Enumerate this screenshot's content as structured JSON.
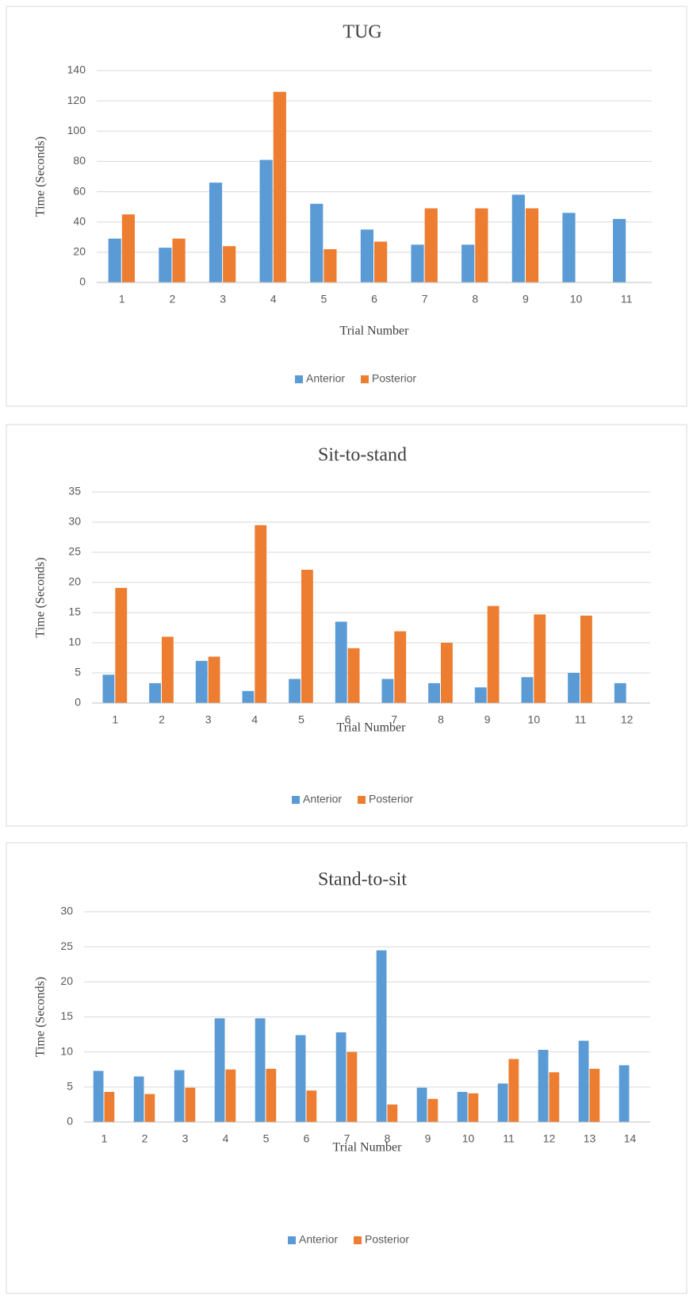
{
  "chart_data": [
    {
      "type": "bar",
      "title": "TUG",
      "x_label": "Trial Number",
      "y_label": "Time (Seconds)",
      "categories": [
        "1",
        "2",
        "3",
        "4",
        "5",
        "6",
        "7",
        "8",
        "9",
        "10",
        "11"
      ],
      "series": [
        {
          "name": "Anterior",
          "color": "#5b9bd5",
          "values": [
            29,
            23,
            66,
            81,
            52,
            35,
            25,
            25,
            58,
            46,
            42
          ]
        },
        {
          "name": "Posterior",
          "color": "#ed7d31",
          "values": [
            45,
            29,
            24,
            126,
            22,
            27,
            49,
            49,
            49,
            null,
            null
          ]
        }
      ],
      "ylim": [
        0,
        140
      ],
      "yticks": [
        0,
        20,
        40,
        60,
        80,
        100,
        120,
        140
      ],
      "grid": true,
      "legend": "bottom"
    },
    {
      "type": "bar",
      "title": "Sit-to-stand",
      "x_label": "Trial Number",
      "y_label": "Time (Seconds)",
      "categories": [
        "1",
        "2",
        "3",
        "4",
        "5",
        "6",
        "7",
        "8",
        "9",
        "10",
        "11",
        "12"
      ],
      "series": [
        {
          "name": "Anterior",
          "color": "#5b9bd5",
          "values": [
            4.7,
            3.3,
            7,
            2,
            4,
            13.5,
            4,
            3.3,
            2.6,
            4.3,
            5,
            3.3
          ]
        },
        {
          "name": "Posterior",
          "color": "#ed7d31",
          "values": [
            19.1,
            11,
            7.7,
            29.5,
            22.1,
            9.1,
            11.9,
            10,
            16.1,
            14.7,
            14.5,
            null
          ]
        }
      ],
      "ylim": [
        0,
        35
      ],
      "yticks": [
        0,
        5,
        10,
        15,
        20,
        25,
        30,
        35
      ],
      "grid": true,
      "legend": "bottom"
    },
    {
      "type": "bar",
      "title": "Stand-to-sit",
      "x_label": "Trial Number",
      "y_label": "Time (Seconds)",
      "categories": [
        "1",
        "2",
        "3",
        "4",
        "5",
        "6",
        "7",
        "8",
        "9",
        "10",
        "11",
        "12",
        "13",
        "14"
      ],
      "series": [
        {
          "name": "Anterior",
          "color": "#5b9bd5",
          "values": [
            7.3,
            6.5,
            7.4,
            14.8,
            14.8,
            12.4,
            12.8,
            24.5,
            4.9,
            4.3,
            5.5,
            10.3,
            11.6,
            8.1
          ]
        },
        {
          "name": "Posterior",
          "color": "#ed7d31",
          "values": [
            4.3,
            4,
            4.9,
            7.5,
            7.6,
            4.5,
            10,
            2.5,
            3.3,
            4.1,
            9,
            7.1,
            7.6,
            null
          ]
        }
      ],
      "ylim": [
        0,
        30
      ],
      "yticks": [
        0,
        5,
        10,
        15,
        20,
        25,
        30
      ],
      "grid": true,
      "legend": "bottom"
    }
  ]
}
